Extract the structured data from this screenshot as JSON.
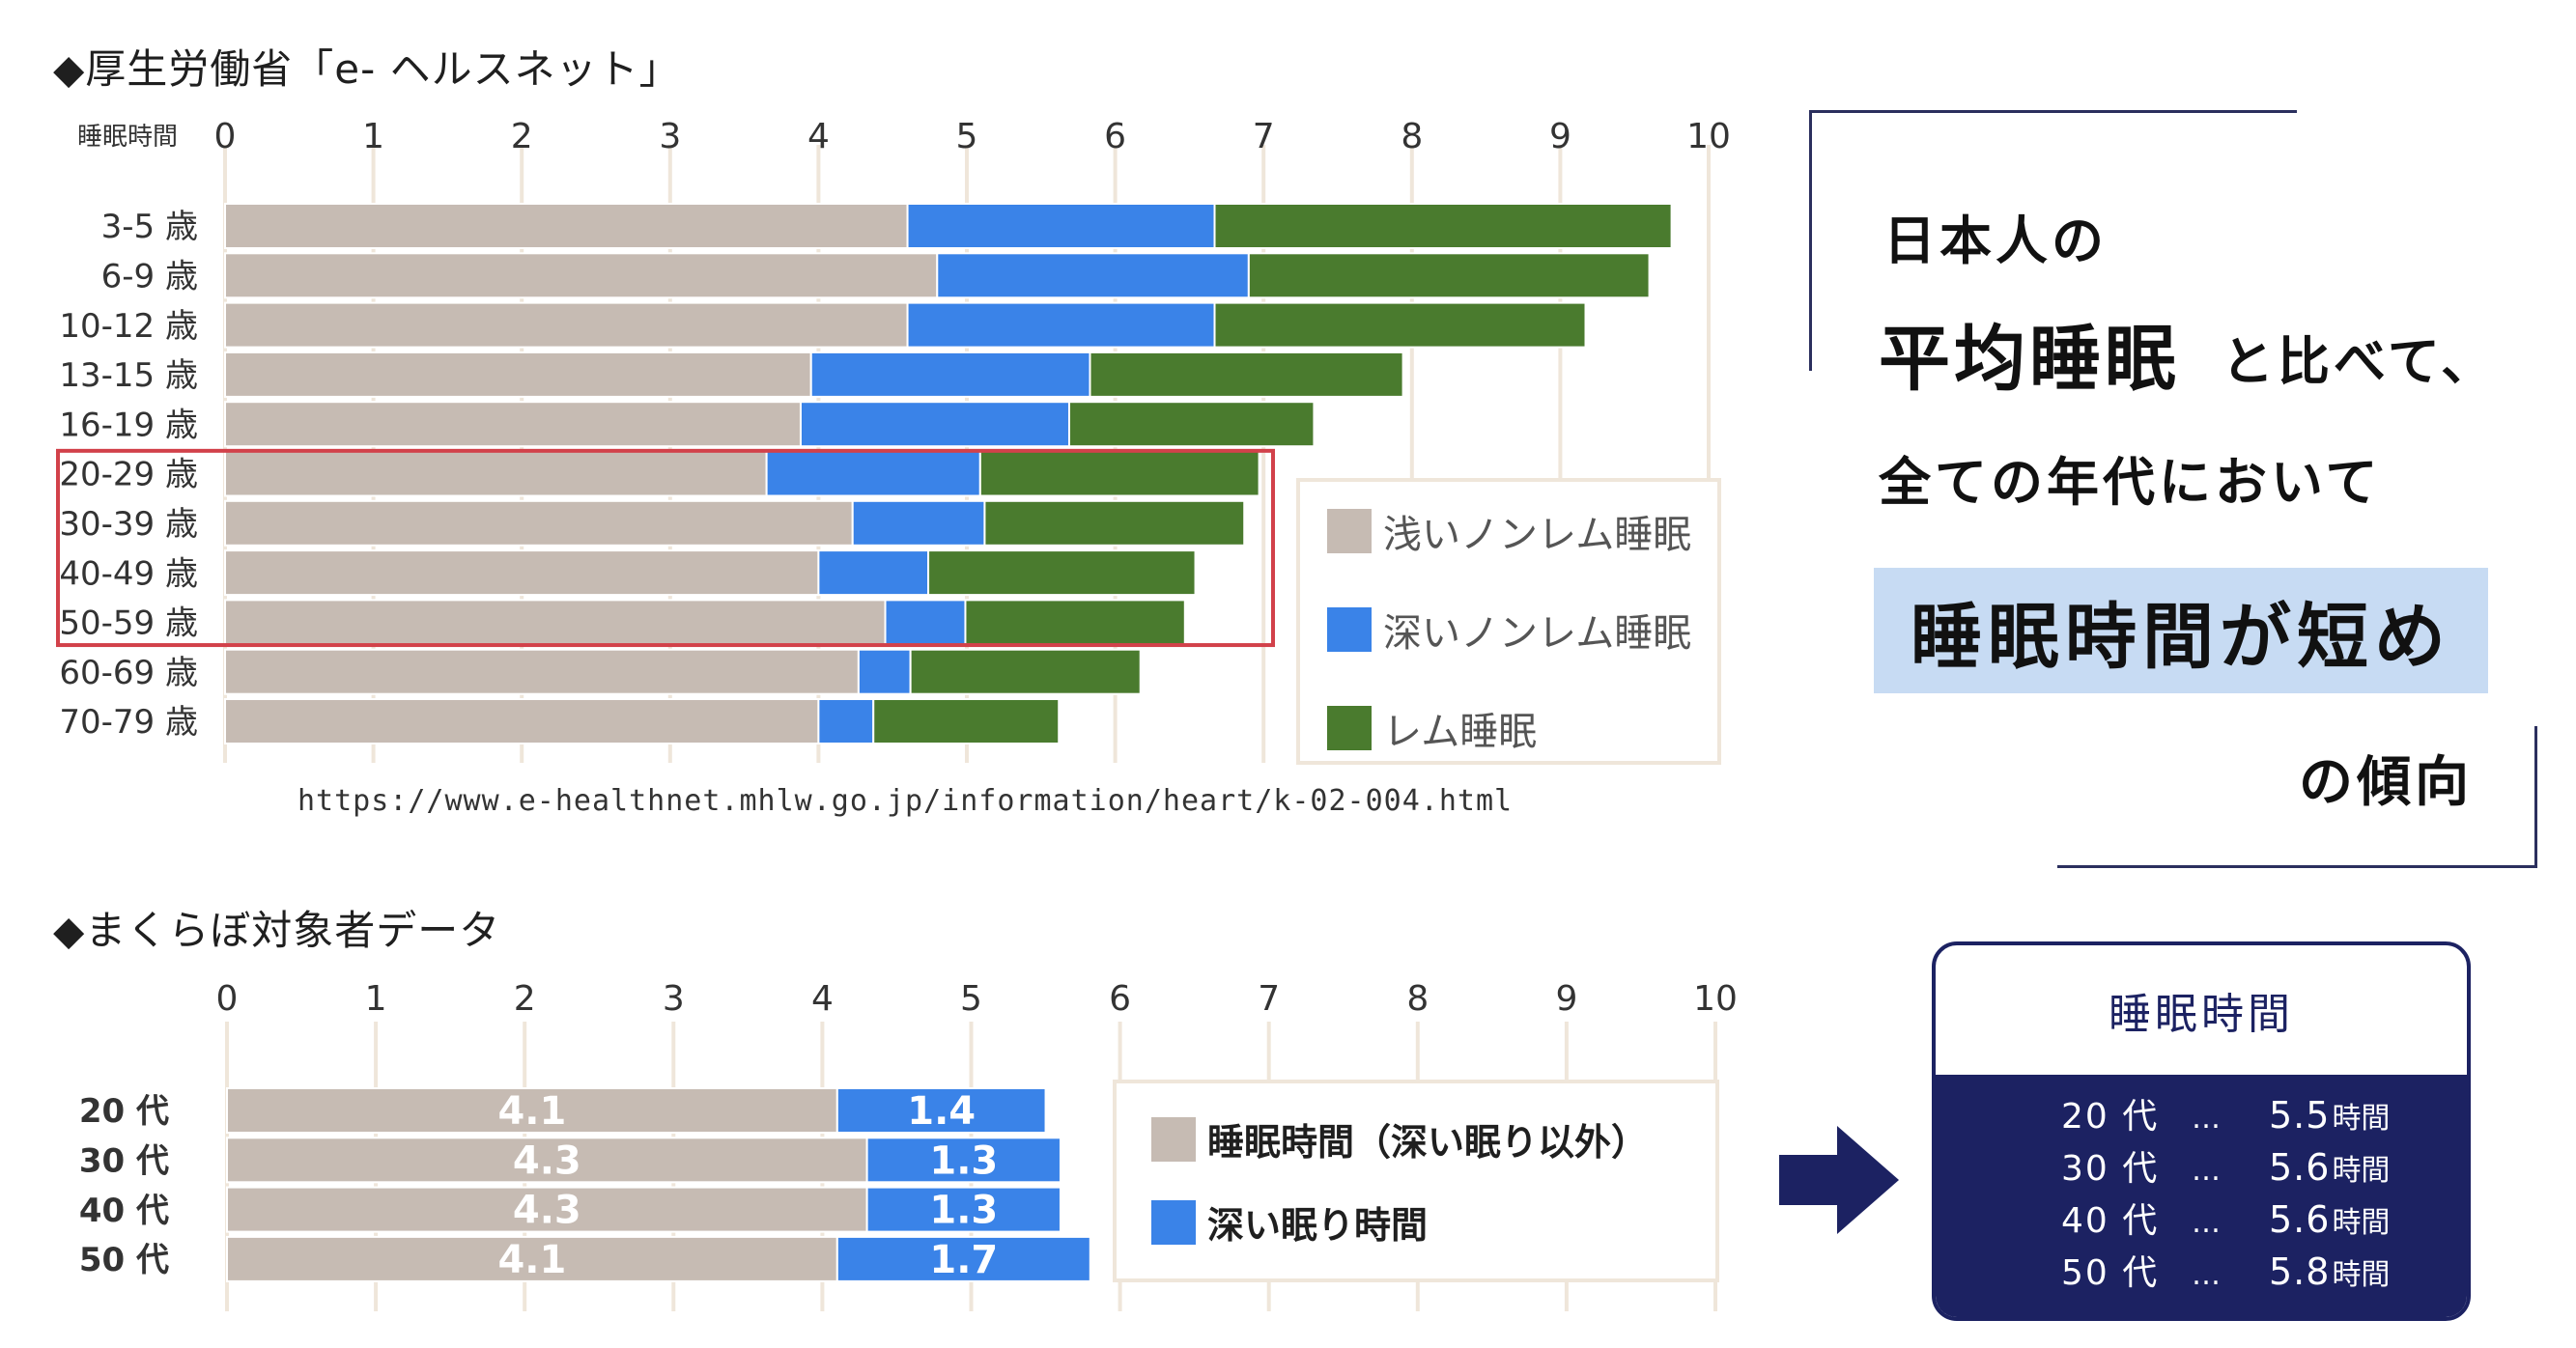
{
  "section1": {
    "title": "◆厚生労働省「e- ヘルスネット」"
  },
  "section2": {
    "title": "◆まくらぼ対象者データ"
  },
  "source_url": "https://www.e-healthnet.mhlw.go.jp/information/heart/k-02-004.html",
  "colors": {
    "light_nonrem": "#c6bbb3",
    "deep_nonrem": "#3a83e8",
    "rem": "#4a7b2e",
    "grid": "#efe6da",
    "highlight_box": "#d2414a",
    "navy": "#1c2262",
    "highlight_bg": "#c7dbf3"
  },
  "legend1": {
    "items": [
      {
        "label": "浅いノンレム睡眠",
        "color": "#c6bbb3"
      },
      {
        "label": "深いノンレム睡眠",
        "color": "#3a83e8"
      },
      {
        "label": "レム睡眠",
        "color": "#4a7b2e"
      }
    ]
  },
  "legend2": {
    "items": [
      {
        "label": "睡眠時間（深い眠り以外）",
        "color": "#c6bbb3"
      },
      {
        "label": "深い眠り時間",
        "color": "#3a83e8"
      }
    ]
  },
  "chart_data": [
    {
      "type": "bar",
      "orientation": "horizontal",
      "stacked": true,
      "axis_title": "睡眠時間",
      "xlim": [
        0,
        10
      ],
      "ticks": [
        "0",
        "1",
        "2",
        "3",
        "4",
        "5",
        "6",
        "7",
        "8",
        "9",
        "10"
      ],
      "grid": true,
      "legend_position": "bottom-right",
      "categories": [
        "3-5 歳",
        "6-9 歳",
        "10-12 歳",
        "13-15 歳",
        "16-19 歳",
        "20-29 歳",
        "30-39 歳",
        "40-49 歳",
        "50-59 歳",
        "60-69 歳",
        "70-79 歳"
      ],
      "series": [
        {
          "name": "浅いノンレム睡眠",
          "values": [
            4.6,
            4.8,
            4.6,
            3.95,
            3.88,
            3.65,
            4.23,
            4.0,
            4.45,
            4.27,
            4.0
          ]
        },
        {
          "name": "深いノンレム睡眠",
          "values": [
            2.07,
            2.1,
            2.07,
            1.88,
            1.81,
            1.44,
            0.89,
            0.74,
            0.54,
            0.35,
            0.37
          ]
        },
        {
          "name": "レム睡眠",
          "values": [
            3.08,
            2.7,
            2.5,
            2.11,
            1.65,
            1.88,
            1.75,
            1.8,
            1.48,
            1.55,
            1.25
          ]
        }
      ],
      "highlighted_categories": [
        "20-29 歳",
        "30-39 歳",
        "40-49 歳",
        "50-59 歳"
      ]
    },
    {
      "type": "bar",
      "orientation": "horizontal",
      "stacked": true,
      "xlim": [
        0,
        10
      ],
      "ticks": [
        "0",
        "1",
        "2",
        "3",
        "4",
        "5",
        "6",
        "7",
        "8",
        "9",
        "10"
      ],
      "grid": true,
      "legend_position": "right",
      "categories": [
        "20 代",
        "30 代",
        "40 代",
        "50 代"
      ],
      "series": [
        {
          "name": "睡眠時間（深い眠り以外）",
          "values": [
            4.1,
            4.3,
            4.3,
            4.1
          ]
        },
        {
          "name": "深い眠り時間",
          "values": [
            1.4,
            1.3,
            1.3,
            1.7
          ]
        }
      ],
      "data_labels": [
        [
          "4.1",
          "1.4"
        ],
        [
          "4.3",
          "1.3"
        ],
        [
          "4.3",
          "1.3"
        ],
        [
          "4.1",
          "1.7"
        ]
      ]
    }
  ],
  "callout": {
    "line1": "日本人の",
    "line2_big": "平均睡眠",
    "line2_small": "と比べて、",
    "line3": "全ての年代において",
    "highlight": "睡眠時間が短め",
    "line5": "の傾向"
  },
  "summary_card": {
    "title": "睡眠時間",
    "rows": [
      {
        "age": "20 代",
        "dots": "…",
        "value": "5.5",
        "unit": "時間"
      },
      {
        "age": "30 代",
        "dots": "…",
        "value": "5.6",
        "unit": "時間"
      },
      {
        "age": "40 代",
        "dots": "…",
        "value": "5.6",
        "unit": "時間"
      },
      {
        "age": "50 代",
        "dots": "…",
        "value": "5.8",
        "unit": "時間"
      }
    ]
  }
}
